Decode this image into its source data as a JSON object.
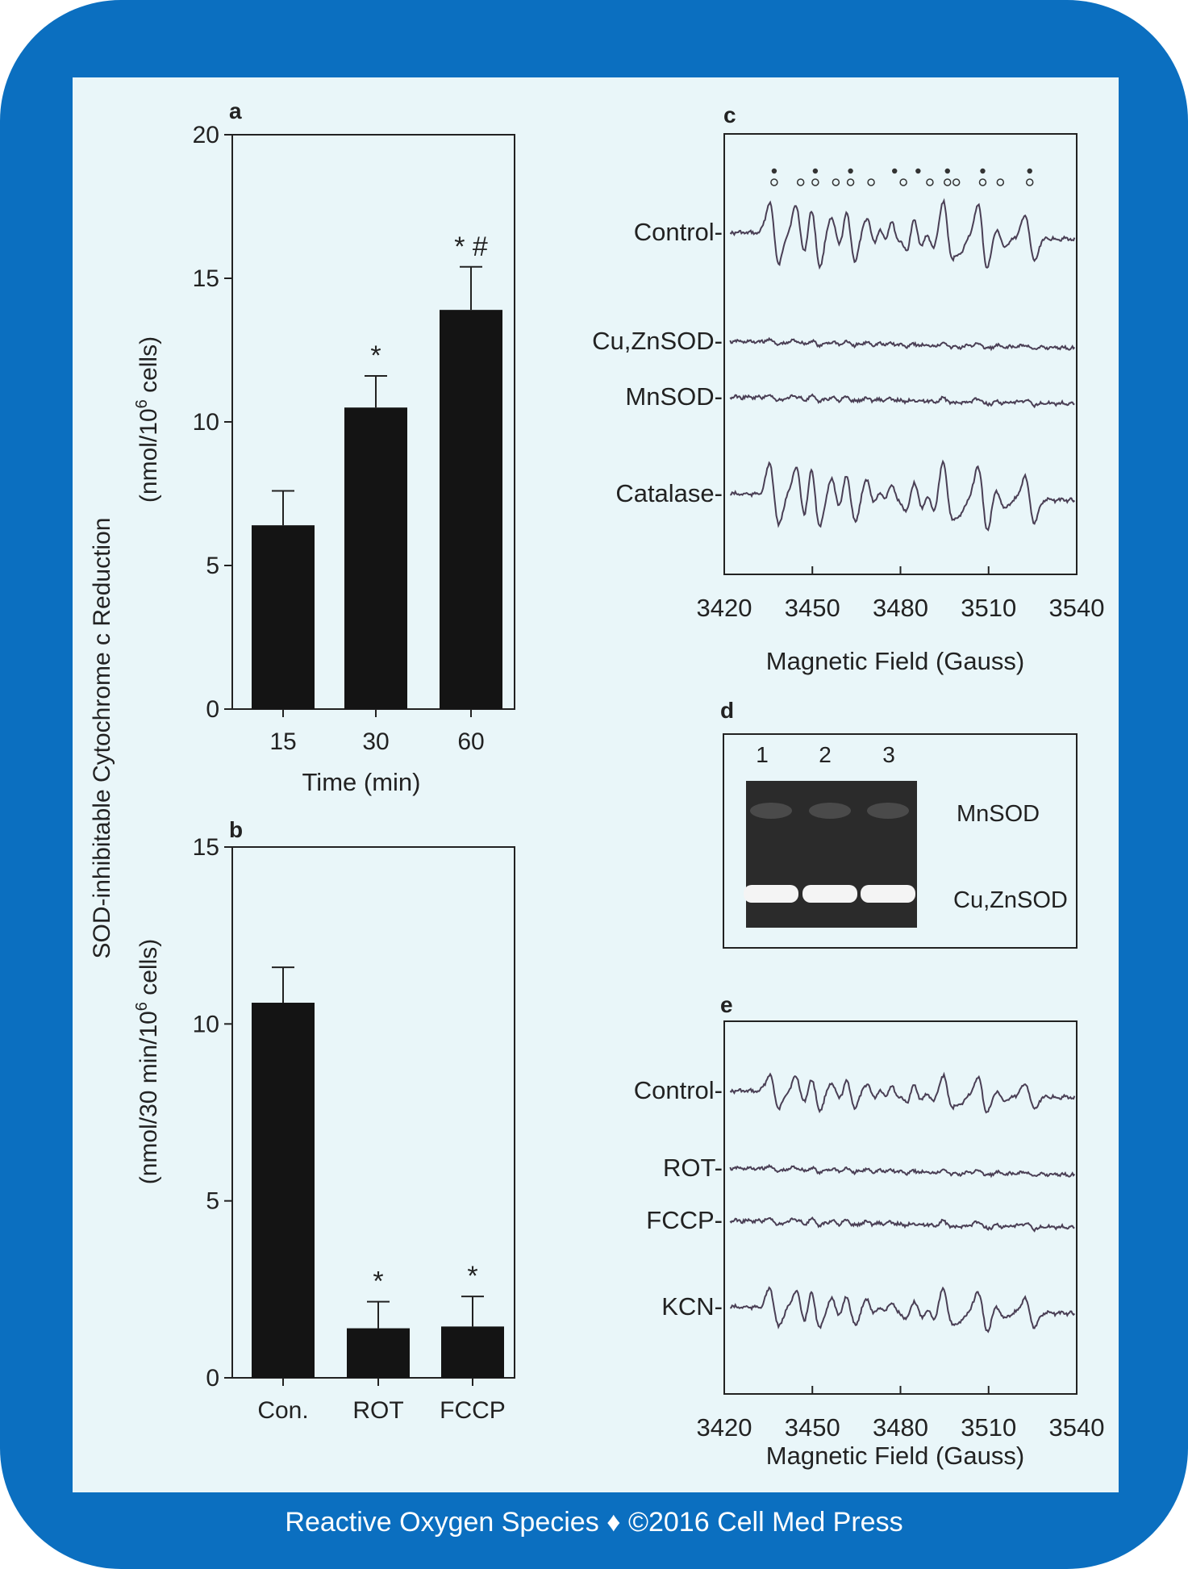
{
  "footer": "Reactive Oxygen Species ♦ ©2016 Cell Med Press",
  "y_axis_shared": {
    "line1": "SOD-inhibitable Cytochrome c Reduction"
  },
  "panel_a": {
    "letter": "a",
    "ylabel_pre": "(nmol/10",
    "ylabel_sup": "6",
    "ylabel_post": " cells)",
    "xlabel": "Time (min)"
  },
  "panel_b": {
    "letter": "b",
    "ylabel_pre": "(nmol/30 min/10",
    "ylabel_sup": "6",
    "ylabel_post": " cells)"
  },
  "panel_c": {
    "letter": "c",
    "xlabel": "Magnetic Field (Gauss)"
  },
  "panel_d": {
    "letter": "d",
    "lanes": [
      "1",
      "2",
      "3"
    ],
    "band_labels": [
      "MnSOD",
      "Cu,ZnSOD"
    ]
  },
  "panel_e": {
    "letter": "e",
    "xlabel": "Magnetic Field (Gauss)"
  },
  "chart_data": [
    {
      "id": "a",
      "type": "bar",
      "categories": [
        "15",
        "30",
        "60"
      ],
      "values": [
        6.4,
        10.5,
        13.9
      ],
      "errors": [
        1.2,
        1.1,
        1.5
      ],
      "annotations": [
        "",
        "*",
        "* #"
      ],
      "yticks": [
        "0",
        "5",
        "10",
        "15",
        "20"
      ],
      "ylim": [
        0,
        20
      ],
      "xlabel": "Time (min)"
    },
    {
      "id": "b",
      "type": "bar",
      "categories": [
        "Con.",
        "ROT",
        "FCCP"
      ],
      "values": [
        10.6,
        1.4,
        1.45
      ],
      "errors": [
        1.0,
        0.75,
        0.85
      ],
      "annotations": [
        "",
        "*",
        "*"
      ],
      "yticks": [
        "0",
        "5",
        "10",
        "15"
      ],
      "ylim": [
        0,
        15
      ]
    },
    {
      "id": "c",
      "type": "line",
      "xticks": [
        "3420",
        "3450",
        "3480",
        "3510",
        "3540"
      ],
      "xlim": [
        3420,
        3540
      ],
      "xlabel": "Magnetic Field (Gauss)",
      "series": [
        {
          "name": "Control-",
          "amplitude": 1.0
        },
        {
          "name": "Cu,ZnSOD-",
          "amplitude": 0.08
        },
        {
          "name": "MnSOD-",
          "amplitude": 0.08
        },
        {
          "name": "Catalase-",
          "amplitude": 1.0
        }
      ]
    },
    {
      "id": "e",
      "type": "line",
      "xticks": [
        "3420",
        "3450",
        "3480",
        "3510",
        "3540"
      ],
      "xlim": [
        3420,
        3540
      ],
      "xlabel": "Magnetic Field (Gauss)",
      "series": [
        {
          "name": "Control-",
          "amplitude": 0.55
        },
        {
          "name": "ROT-",
          "amplitude": 0.08
        },
        {
          "name": "FCCP-",
          "amplitude": 0.1
        },
        {
          "name": "KCN-",
          "amplitude": 0.62
        }
      ]
    }
  ]
}
